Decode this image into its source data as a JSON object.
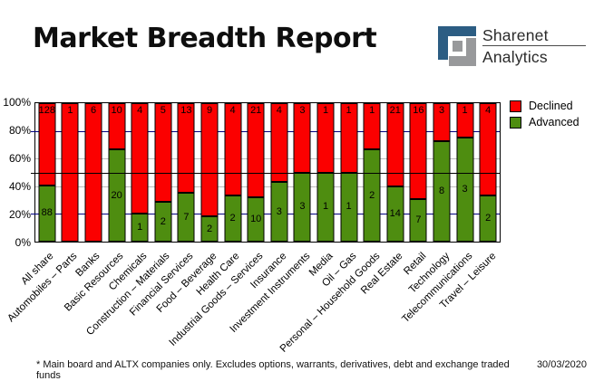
{
  "header": {
    "title": "Market Breadth Report",
    "logo": {
      "line1": "Sharenet",
      "line2": "Analytics"
    }
  },
  "colors": {
    "declined": "#fb0000",
    "advanced": "#4e8d10",
    "grid_navy": "#000080",
    "grid_gray": "#bdbdbd",
    "logo_blue": "#2c5d83",
    "logo_gray": "#98999b"
  },
  "legend": [
    {
      "label": "Declined",
      "color": "#fb0000"
    },
    {
      "label": "Advanced",
      "color": "#4e8d10"
    }
  ],
  "chart_data": {
    "type": "bar",
    "stacked": true,
    "stack_mode": "percent",
    "title": "Market Breadth Report",
    "xlabel": "",
    "ylabel": "",
    "ylim": [
      0,
      100
    ],
    "y_ticks": [
      "100%",
      "80%",
      "60%",
      "40%",
      "20%",
      "0%"
    ],
    "legend_position": "top-right",
    "reference_line_pct": 50,
    "gridlines": [
      {
        "pct": 80,
        "color": "#000080",
        "extend": true
      },
      {
        "pct": 60,
        "color": "#bdbdbd",
        "extend": false
      },
      {
        "pct": 40,
        "color": "#bdbdbd",
        "extend": false
      },
      {
        "pct": 20,
        "color": "#000080",
        "extend": true
      }
    ],
    "categories": [
      "All share",
      "Automobiles – Parts",
      "Banks",
      "Basic Resources",
      "Chemicals",
      "Construction – Materials",
      "Financial Services",
      "Food – Beverage",
      "Health Care",
      "Industrial Goods – Services",
      "Insurance",
      "Investment Instruments",
      "Media",
      "Oil – Gas",
      "Personal – Household Goods",
      "Real Estate",
      "Retail",
      "Technology",
      "Telecommunications",
      "Travel – Leisure"
    ],
    "series": [
      {
        "name": "Declined",
        "color": "#fb0000",
        "values": [
          128,
          1,
          6,
          10,
          4,
          5,
          13,
          9,
          4,
          21,
          4,
          3,
          1,
          1,
          1,
          21,
          16,
          3,
          1,
          4
        ]
      },
      {
        "name": "Advanced",
        "color": "#4e8d10",
        "values": [
          88,
          0,
          0,
          20,
          1,
          2,
          7,
          2,
          2,
          10,
          3,
          3,
          1,
          1,
          2,
          14,
          7,
          8,
          3,
          2
        ]
      }
    ]
  },
  "footnote": {
    "text": "* Main board and ALTX companies only. Excludes options, warrants, derivatives, debt and exchange traded funds",
    "date": "30/03/2020"
  }
}
